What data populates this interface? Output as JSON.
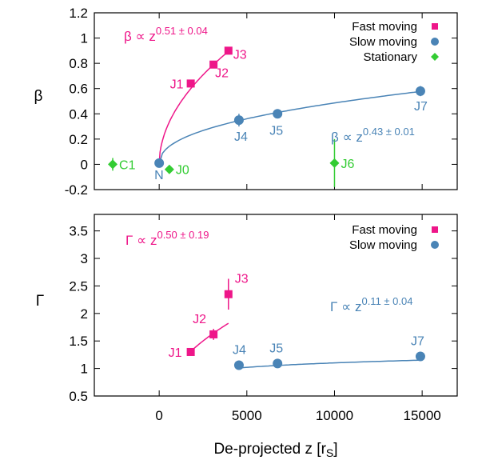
{
  "chart_data": {
    "type": "scatter",
    "xlabel": "De-projected z [r",
    "xlabel_sub": "S",
    "xlabel_end": "]",
    "x_ticks": [
      0,
      5000,
      10000,
      15000
    ],
    "xlim": [
      -3700,
      17000
    ],
    "colors": {
      "fast": "#ee1689",
      "slow": "#4a84b6",
      "stationary": "#33cc33"
    },
    "panels": [
      {
        "id": "beta",
        "ylabel": "β",
        "ylim": [
          -0.2,
          1.2
        ],
        "y_ticks": [
          -0.2,
          0,
          0.2,
          0.4,
          0.6,
          0.8,
          1,
          1.2
        ],
        "legend": [
          "Fast moving",
          "Slow moving",
          "Stationary"
        ],
        "series": [
          {
            "name": "Fast moving",
            "key": "fast",
            "marker": "square",
            "points": [
              {
                "label": "J1",
                "x": 1800,
                "y": 0.64,
                "err": 0
              },
              {
                "label": "J2",
                "x": 3100,
                "y": 0.79,
                "err": 0
              },
              {
                "label": "J3",
                "x": 3950,
                "y": 0.9,
                "err": 0
              }
            ]
          },
          {
            "name": "Slow moving",
            "key": "slow",
            "marker": "circle",
            "points": [
              {
                "label": "N",
                "x": 0,
                "y": 0.01,
                "err": 0
              },
              {
                "label": "J4",
                "x": 4550,
                "y": 0.35,
                "err": 0.05
              },
              {
                "label": "J5",
                "x": 6750,
                "y": 0.4,
                "err": 0.02
              },
              {
                "label": "J7",
                "x": 14900,
                "y": 0.58,
                "err": 0.04
              }
            ]
          },
          {
            "name": "Stationary",
            "key": "stationary",
            "marker": "diamond",
            "points": [
              {
                "label": "C1",
                "x": -2650,
                "y": 0,
                "err": 0.05
              },
              {
                "label": "J0",
                "x": 580,
                "y": -0.04,
                "err": 0
              },
              {
                "label": "J6",
                "x": 10000,
                "y": 0.01,
                "err": 0.19
              }
            ]
          }
        ],
        "fits": [
          {
            "key": "fast",
            "x0": 0,
            "x1": 3950,
            "coef": 0.0131,
            "exp": 0.51,
            "shift": 0
          },
          {
            "key": "slow",
            "x0": 0,
            "x1": 14900,
            "coef": 0.00926,
            "exp": 0.43,
            "shift": 0
          }
        ],
        "annotations": [
          {
            "key": "fast",
            "base": "β ∝ z",
            "sup": "0.51 ± 0.04"
          },
          {
            "key": "slow",
            "base": "β ∝ z",
            "sup": "0.43 ± 0.01"
          }
        ]
      },
      {
        "id": "gamma",
        "ylabel": "Γ",
        "ylim": [
          0.5,
          3.8
        ],
        "y_ticks": [
          0.5,
          1,
          1.5,
          2,
          2.5,
          3,
          3.5
        ],
        "legend": [
          "Fast moving",
          "Slow moving"
        ],
        "series": [
          {
            "name": "Fast moving",
            "key": "fast",
            "marker": "square",
            "points": [
              {
                "label": "J1",
                "x": 1800,
                "y": 1.3,
                "err": 0
              },
              {
                "label": "J2",
                "x": 3100,
                "y": 1.62,
                "err": 0.1
              },
              {
                "label": "J3",
                "x": 3950,
                "y": 2.35,
                "err": 0.28
              }
            ]
          },
          {
            "name": "Slow moving",
            "key": "slow",
            "marker": "circle",
            "points": [
              {
                "label": "J4",
                "x": 4550,
                "y": 1.06,
                "err": 0
              },
              {
                "label": "J5",
                "x": 6750,
                "y": 1.09,
                "err": 0
              },
              {
                "label": "J7",
                "x": 14900,
                "y": 1.22,
                "err": 0
              }
            ]
          }
        ],
        "fits": [
          {
            "key": "fast",
            "x0": 1800,
            "x1": 3950,
            "coef": 0.025,
            "exp": 0.5,
            "shift": 0.25
          },
          {
            "key": "slow",
            "x0": 4550,
            "x1": 14900,
            "coef": 0.4,
            "exp": 0.11,
            "shift": 0.0
          }
        ],
        "annotations": [
          {
            "key": "fast",
            "base": "Γ ∝ z",
            "sup": "0.50 ± 0.19"
          },
          {
            "key": "slow",
            "base": "Γ ∝ z",
            "sup": "0.11 ± 0.04"
          }
        ]
      }
    ]
  }
}
